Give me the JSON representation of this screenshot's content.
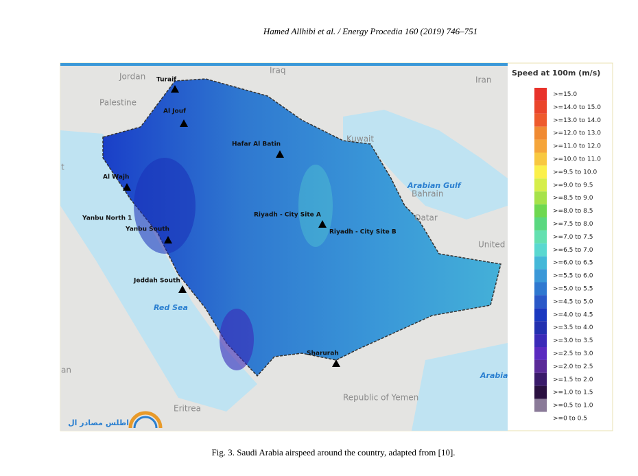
{
  "header": {
    "text": "Hamed Allhibi  et al. / Energy Procedia 160 (2019) 746–751"
  },
  "figure": {
    "map_labels": [
      "Jordan",
      "Iraq",
      "Iran",
      "Palestine",
      "Kuwait",
      "Bahrain",
      "Qatar",
      "Arabian Gulf",
      "Red Sea",
      "United",
      "Arabia",
      "Republic of Yemen",
      "Eritrea",
      "an",
      "t"
    ],
    "sites": [
      "Turaif",
      "Al Jouf",
      "Hafar Al Batin",
      "Al Wajh",
      "Yanbu North 1",
      "Yanbu South",
      "Riyadh - City Site A",
      "Riyadh - City Site B",
      "Jeddah South",
      "Sharurah"
    ],
    "logo_text": "اطلس مصادر ال",
    "legend": {
      "title": "Speed at 100m (m/s)",
      "entries": [
        {
          "label": ">=15.0",
          "color": "#e8322a"
        },
        {
          "label": ">=14.0 to 15.0",
          "color": "#ea452b"
        },
        {
          "label": ">=13.0 to 14.0",
          "color": "#ee5a2c"
        },
        {
          "label": ">=12.0 to 13.0",
          "color": "#f08a32"
        },
        {
          "label": ">=11.0 to 12.0",
          "color": "#f5a53a"
        },
        {
          "label": ">=10.0 to 11.0",
          "color": "#f8c840"
        },
        {
          "label": ">=9.5 to 10.0",
          "color": "#fbf04a"
        },
        {
          "label": ">=9.0 to 9.5",
          "color": "#d6ee4a"
        },
        {
          "label": ">=8.5 to 9.0",
          "color": "#a6e24a"
        },
        {
          "label": ">=8.0 to 8.5",
          "color": "#6ed850"
        },
        {
          "label": ">=7.5 to 8.0",
          "color": "#5ad880"
        },
        {
          "label": ">=7.0 to 7.5",
          "color": "#64e0b0"
        },
        {
          "label": ">=6.5 to 7.0",
          "color": "#5ad8d0"
        },
        {
          "label": ">=6.0 to 6.5",
          "color": "#44b8d8"
        },
        {
          "label": ">=5.5 to 6.0",
          "color": "#3a98d8"
        },
        {
          "label": ">=5.0 to 5.5",
          "color": "#2f78d0"
        },
        {
          "label": ">=4.5 to 5.0",
          "color": "#2a58c8"
        },
        {
          "label": ">=4.0 to 4.5",
          "color": "#1a38c0"
        },
        {
          "label": ">=3.5 to 4.0",
          "color": "#2230b0"
        },
        {
          "label": ">=3.0 to 3.5",
          "color": "#3a2ab8"
        },
        {
          "label": ">=2.5 to 3.0",
          "color": "#5a2ac0"
        },
        {
          "label": ">=2.0 to 2.5",
          "color": "#5a2a98"
        },
        {
          "label": ">=1.5 to 2.0",
          "color": "#3a1a6a"
        },
        {
          "label": ">=1.0 to 1.5",
          "color": "#2a1040"
        },
        {
          "label": ">=0.5 to 1.0",
          "color": "#8a7a98"
        },
        {
          "label": ">=0 to 0.5",
          "color": "#ffffff"
        }
      ]
    }
  },
  "caption": "Fig. 3. Saudi Arabia airspeed around the country, adapted from [10]."
}
